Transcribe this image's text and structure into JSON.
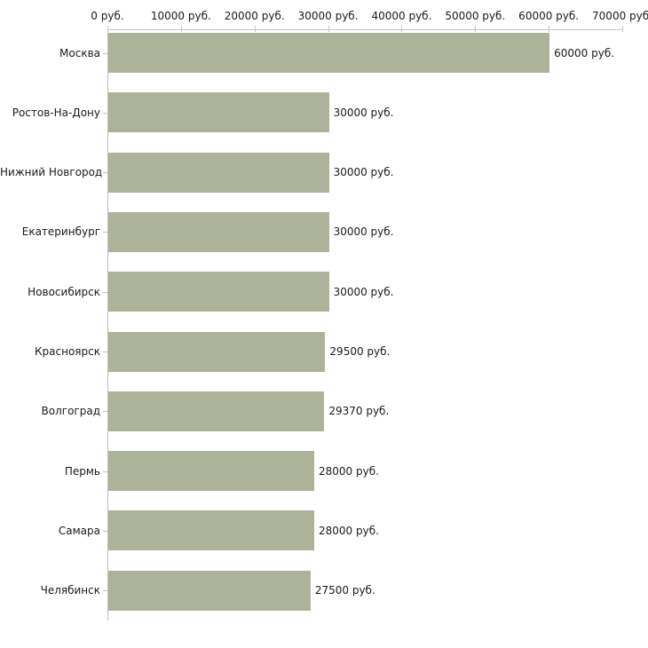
{
  "chart_data": {
    "type": "bar",
    "orientation": "horizontal",
    "title": "",
    "xlabel": "",
    "ylabel": "",
    "grid": false,
    "legend": false,
    "categories": [
      "Москва",
      "Ростов-На-Дону",
      "Нижний Новгород",
      "Екатеринбург",
      "Новосибирск",
      "Красноярск",
      "Волгоград",
      "Пермь",
      "Самара",
      "Челябинск"
    ],
    "values": [
      60000,
      30000,
      30000,
      30000,
      30000,
      29500,
      29370,
      28000,
      28000,
      27500
    ],
    "value_labels": [
      "60000 руб.",
      "30000 руб.",
      "30000 руб.",
      "30000 руб.",
      "30000 руб.",
      "29500 руб.",
      "29370 руб.",
      "28000 руб.",
      "28000 руб.",
      "27500 руб."
    ],
    "x_tick_values": [
      0,
      10000,
      20000,
      30000,
      40000,
      50000,
      60000,
      70000
    ],
    "x_tick_labels": [
      "0 руб.",
      "10000 руб.",
      "20000 руб.",
      "30000 руб.",
      "40000 руб.",
      "50000 руб.",
      "60000 руб.",
      "70000 руб."
    ],
    "xlim": [
      0,
      70000
    ],
    "colors": {
      "bar_fill": "#adb399",
      "axis_line": "#c6c6c6",
      "y_axis_line": "#bdbdbd",
      "tick_mark": "#c9c99c",
      "text": "#1a1a1a",
      "background": "#ffffff"
    }
  }
}
